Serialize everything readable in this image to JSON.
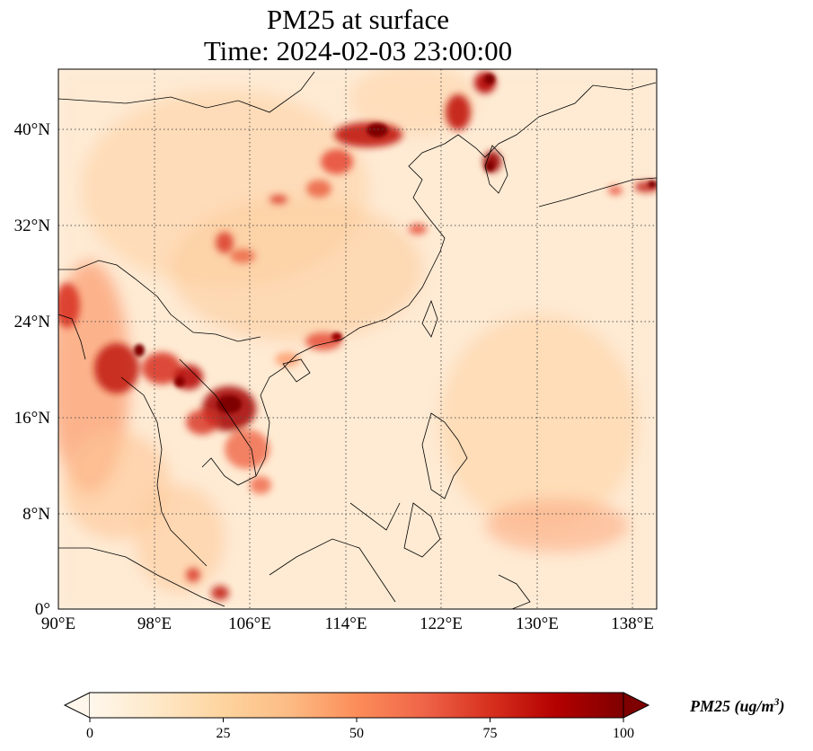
{
  "title": {
    "line1": "PM25 at surface",
    "line2": "Time: 2024-02-03 23:00:00"
  },
  "map": {
    "lon_range": [
      90,
      140
    ],
    "lat_range": [
      0,
      45
    ],
    "lon_ticks": [
      "90°E",
      "98°E",
      "106°E",
      "114°E",
      "122°E",
      "130°E",
      "138°E"
    ],
    "lat_ticks": [
      "0°",
      "8°N",
      "16°N",
      "24°N",
      "32°N",
      "40°N"
    ],
    "grid": "dotted",
    "colormap": "OrRd"
  },
  "colorbar": {
    "ticks": [
      "0",
      "25",
      "50",
      "75",
      "100"
    ],
    "label_main": "PM25 (ug/m",
    "label_sup": "3",
    "label_end": ")",
    "extend": "both",
    "colors": [
      "#fff7ec",
      "#fee8c8",
      "#fdd49e",
      "#fdbb84",
      "#fc8d59",
      "#ef6548",
      "#d7301f",
      "#b30000",
      "#7f0000"
    ]
  }
}
